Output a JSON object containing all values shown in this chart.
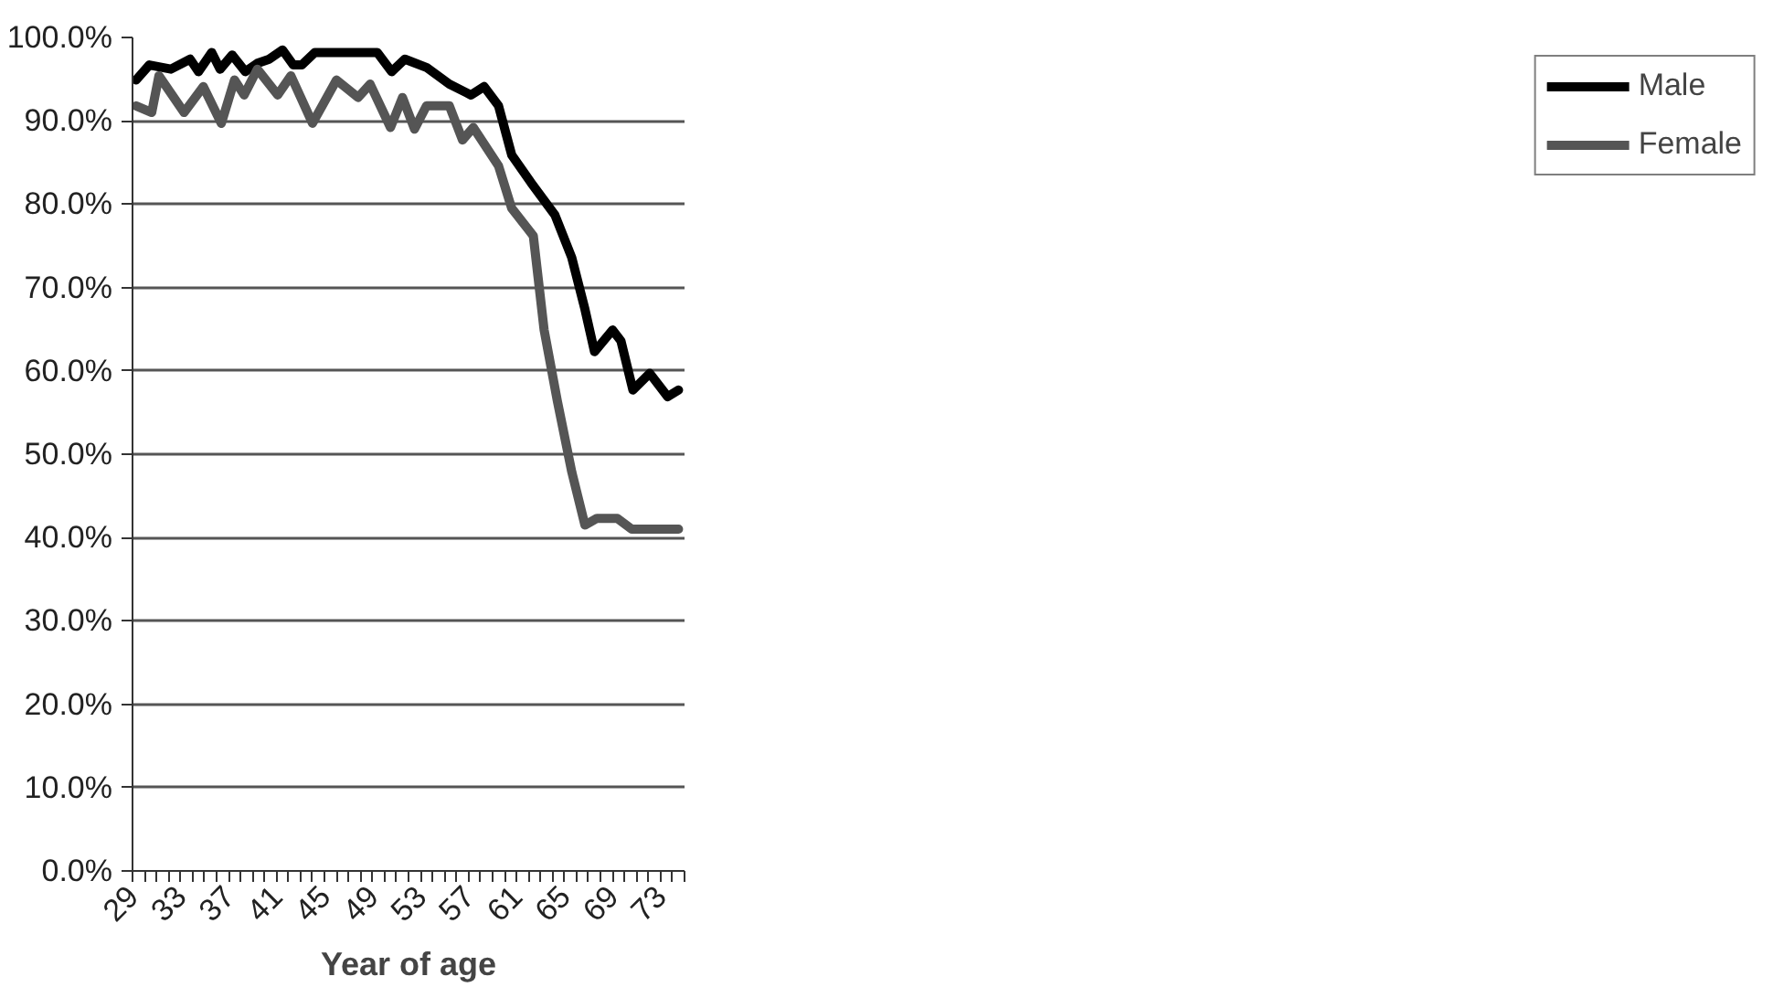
{
  "chart_data": {
    "type": "line",
    "xlabel": "Year of age",
    "xlim": [
      29,
      75
    ],
    "ylim": [
      0,
      100
    ],
    "xticks": [
      29,
      {
        "value": 30,
        "label": null
      },
      {
        "value": 31,
        "label": null
      },
      {
        "value": 32,
        "label": null
      },
      33,
      {
        "value": 34,
        "label": null
      },
      {
        "value": 35,
        "label": null
      },
      {
        "value": 36,
        "label": null
      },
      37,
      {
        "value": 38,
        "label": null
      },
      {
        "value": 39,
        "label": null
      },
      {
        "value": 40,
        "label": null
      },
      41,
      {
        "value": 42,
        "label": null
      },
      {
        "value": 43,
        "label": null
      },
      {
        "value": 44,
        "label": null
      },
      45,
      {
        "value": 46,
        "label": null
      },
      {
        "value": 47,
        "label": null
      },
      {
        "value": 48,
        "label": null
      },
      49,
      {
        "value": 50,
        "label": null
      },
      {
        "value": 51,
        "label": null
      },
      {
        "value": 52,
        "label": null
      },
      53,
      {
        "value": 54,
        "label": null
      },
      {
        "value": 55,
        "label": null
      },
      {
        "value": 56,
        "label": null
      },
      57,
      {
        "value": 58,
        "label": null
      },
      {
        "value": 59,
        "label": null
      },
      {
        "value": 60,
        "label": null
      },
      61,
      {
        "value": 62,
        "label": null
      },
      {
        "value": 63,
        "label": null
      },
      {
        "value": 64,
        "label": null
      },
      65,
      {
        "value": 66,
        "label": null
      },
      {
        "value": 67,
        "label": null
      },
      {
        "value": 68,
        "label": null
      },
      69,
      {
        "value": 70,
        "label": null
      },
      {
        "value": 71,
        "label": null
      },
      {
        "value": 72,
        "label": null
      },
      73,
      {
        "value": 74,
        "label": null
      },
      {
        "value": 75,
        "label": null
      }
    ],
    "yticks": [
      {
        "value": 0,
        "label": "0.0%"
      },
      {
        "value": 10,
        "label": "10.0%"
      },
      {
        "value": 20,
        "label": "20.0%"
      },
      {
        "value": 30,
        "label": "30.0%"
      },
      {
        "value": 40,
        "label": "40.0%"
      },
      {
        "value": 50,
        "label": "50.0%"
      },
      {
        "value": 60,
        "label": "60.0%"
      },
      {
        "value": 70,
        "label": "70.0%"
      },
      {
        "value": 80,
        "label": "80.0%"
      },
      {
        "value": 90,
        "label": "90.0%"
      },
      {
        "value": 100,
        "label": "100.0%"
      }
    ],
    "grid": "y",
    "legend": "right",
    "marker": "none",
    "line_style": "solid",
    "series": [
      {
        "name": "Male",
        "color": "#000000",
        "x": [
          29.3,
          30.4,
          32.2,
          33.8,
          34.5,
          35.6,
          36.3,
          37.3,
          38.4,
          39.4,
          40.4,
          41.5,
          42.4,
          43.1,
          44.2,
          47.6,
          49.4,
          50.6,
          51.7,
          53.5,
          55.4,
          57.2,
          58.3,
          59.5,
          60.6,
          62.2,
          64.2,
          65.6,
          66.7,
          67.5,
          69.0,
          69.7,
          70.7,
          72.1,
          73.6,
          74.5
        ],
        "values": [
          94.9,
          96.7,
          96.2,
          97.4,
          95.9,
          98.2,
          96.2,
          97.9,
          95.9,
          96.9,
          97.4,
          98.5,
          96.7,
          96.7,
          98.2,
          98.2,
          98.2,
          95.9,
          97.4,
          96.4,
          94.4,
          93.1,
          94.1,
          91.8,
          85.9,
          82.6,
          78.7,
          73.6,
          67.4,
          62.3,
          64.9,
          63.6,
          57.7,
          59.7,
          56.9,
          57.7
        ]
      },
      {
        "name": "Female",
        "color": "#555555",
        "x": [
          29.3,
          30.6,
          31.2,
          33.3,
          34.9,
          36.4,
          37.5,
          38.3,
          39.4,
          41.1,
          42.2,
          44.0,
          46.0,
          47.8,
          48.8,
          50.5,
          51.5,
          52.5,
          53.5,
          55.4,
          56.5,
          57.4,
          59.5,
          60.6,
          62.4,
          63.3,
          64.4,
          65.6,
          66.7,
          67.7,
          69.4,
          70.6,
          74.5
        ],
        "values": [
          91.8,
          91.0,
          95.4,
          91.0,
          94.1,
          89.7,
          94.9,
          93.1,
          96.2,
          93.1,
          95.4,
          89.7,
          94.9,
          92.8,
          94.4,
          89.2,
          92.8,
          89.0,
          91.8,
          91.8,
          87.7,
          89.2,
          84.6,
          79.5,
          76.2,
          64.9,
          56.4,
          47.9,
          41.5,
          42.3,
          42.3,
          41.0,
          41.0
        ]
      }
    ]
  }
}
